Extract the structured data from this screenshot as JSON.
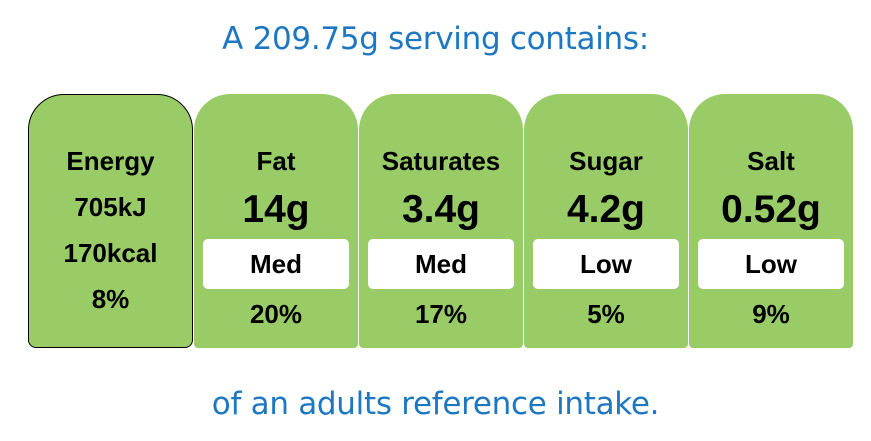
{
  "header": {
    "text": "A 209.75g serving contains:"
  },
  "energy": {
    "label": "Energy",
    "kj": "705kJ",
    "kcal": "170kcal",
    "percent": "8%"
  },
  "nutrients": [
    {
      "label": "Fat",
      "amount": "14g",
      "level": "Med",
      "percent": "20%",
      "color": "#99cc66"
    },
    {
      "label": "Saturates",
      "amount": "3.4g",
      "level": "Med",
      "percent": "17%",
      "color": "#99cc66"
    },
    {
      "label": "Sugar",
      "amount": "4.2g",
      "level": "Low",
      "percent": "5%",
      "color": "#99cc66"
    },
    {
      "label": "Salt",
      "amount": "0.52g",
      "level": "Low",
      "percent": "9%",
      "color": "#99cc66"
    }
  ],
  "footer": {
    "text": "of an adults reference intake."
  }
}
